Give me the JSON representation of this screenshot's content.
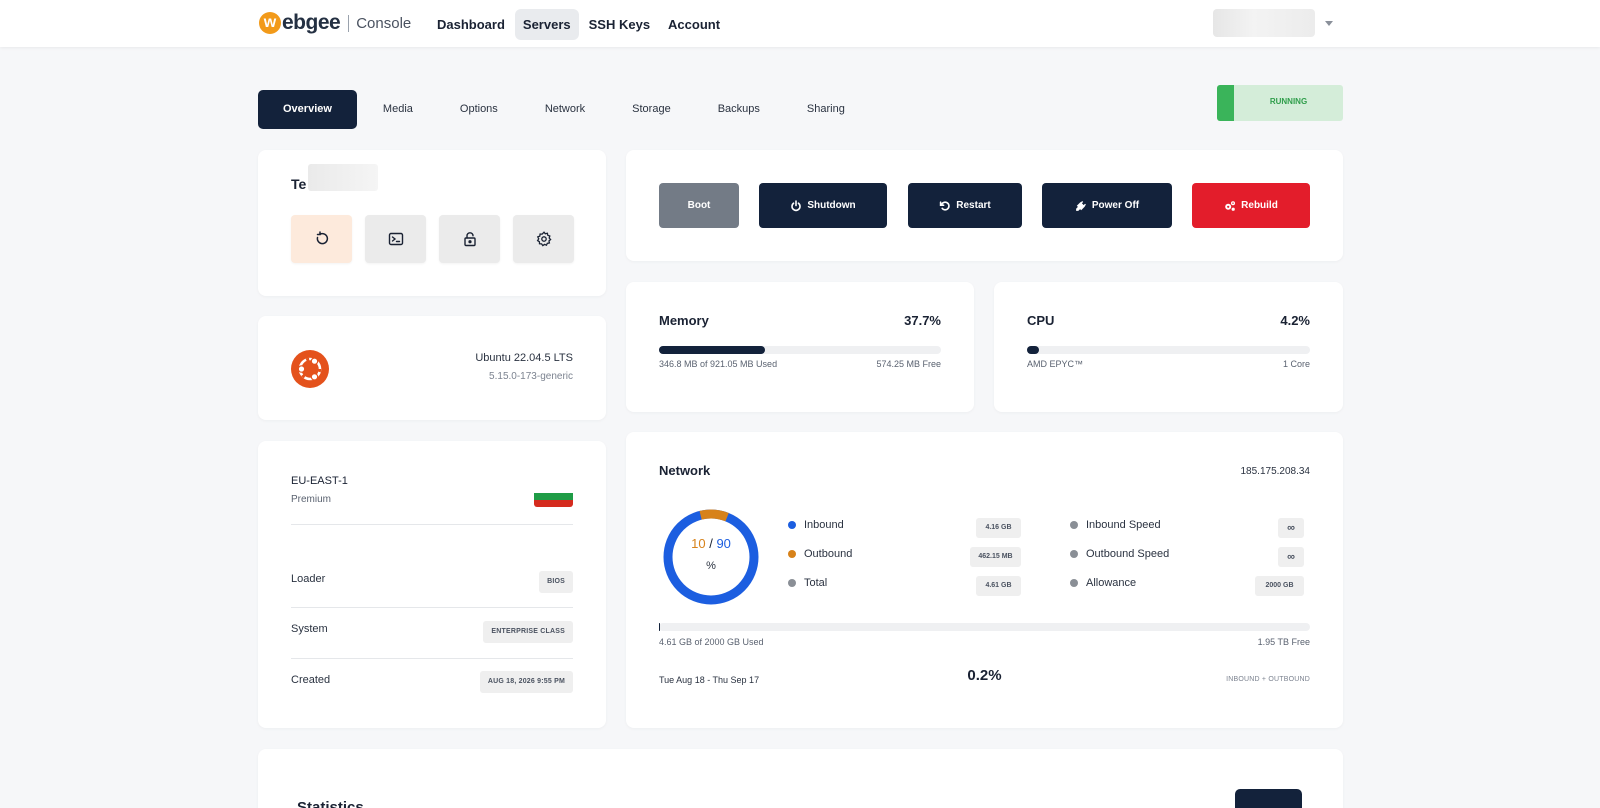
{
  "brand": {
    "logo_letter": "w",
    "name": "ebgee",
    "product": "Console"
  },
  "nav": {
    "items": [
      {
        "label": "Dashboard",
        "active": false
      },
      {
        "label": "Servers",
        "active": true
      },
      {
        "label": "SSH Keys",
        "active": false
      },
      {
        "label": "Account",
        "active": false
      }
    ]
  },
  "tabs": [
    "Overview",
    "Media",
    "Options",
    "Network",
    "Storage",
    "Backups",
    "Sharing"
  ],
  "status": {
    "label": "RUNNING",
    "color": "#3ab45a"
  },
  "server": {
    "name_prefix": "Te"
  },
  "quick_actions": [
    {
      "icon": "reload-icon"
    },
    {
      "icon": "terminal-icon"
    },
    {
      "icon": "lock-icon"
    },
    {
      "icon": "gear-icon"
    }
  ],
  "os": {
    "name": "Ubuntu 22.04.5 LTS",
    "kernel": "5.15.0-173-generic",
    "icon": "ubuntu-logo-icon"
  },
  "location": {
    "region": "EU-EAST-1",
    "tier": "Premium",
    "flag": "bulgaria-flag",
    "rows": [
      {
        "label": "Loader",
        "value": "BIOS"
      },
      {
        "label": "System",
        "value": "ENTERPRISE CLASS"
      },
      {
        "label": "Created",
        "value": "AUG 18, 2026 9:55 PM"
      }
    ]
  },
  "power": {
    "boot": "Boot",
    "shutdown": "Shutdown",
    "restart": "Restart",
    "poweroff": "Power Off",
    "rebuild": "Rebuild"
  },
  "memory": {
    "title": "Memory",
    "percent": "37.7%",
    "fill": 0.377,
    "used": "346.8 MB of 921.05 MB Used",
    "free": "574.25 MB Free"
  },
  "cpu": {
    "title": "CPU",
    "percent": "4.2%",
    "fill": 0.042,
    "model": "AMD EPYC™",
    "cores": "1 Core"
  },
  "network": {
    "title": "Network",
    "ip": "185.175.208.34",
    "donut": {
      "outbound_pct": "10",
      "slash": "/",
      "inbound_pct": "90",
      "unit": "%"
    },
    "legend_left": [
      {
        "label": "Inbound",
        "value": "4.16 GB",
        "color": "#1c5ee0"
      },
      {
        "label": "Outbound",
        "value": "462.15 MB",
        "color": "#d7821a"
      },
      {
        "label": "Total",
        "value": "4.61 GB",
        "color": "#8a8f96"
      }
    ],
    "legend_right": [
      {
        "label": "Inbound Speed",
        "value": "∞",
        "color": "#8a8f96"
      },
      {
        "label": "Outbound Speed",
        "value": "∞",
        "color": "#8a8f96"
      },
      {
        "label": "Allowance",
        "value": "2000 GB",
        "color": "#8a8f96"
      }
    ],
    "bar_fill": 0.0023,
    "used": "4.61 GB of 2000 GB Used",
    "free": "1.95 TB Free",
    "range": "Tue Aug 18 - Thu Sep 17",
    "total_pct": "0.2%",
    "io_label": "INBOUND + OUTBOUND"
  },
  "statistics": {
    "title": "Statistics"
  }
}
